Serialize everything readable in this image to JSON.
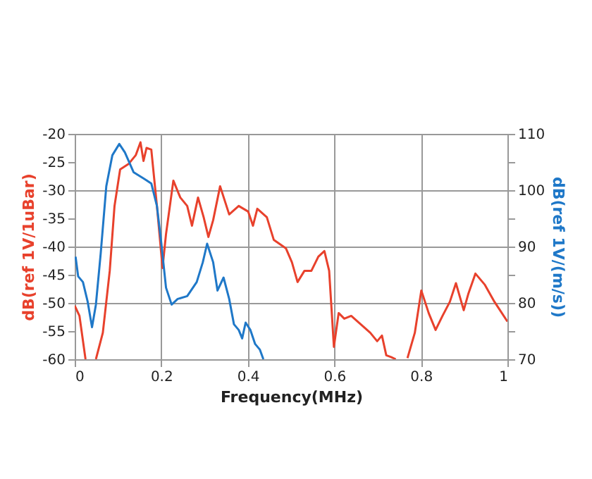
{
  "chart_data": {
    "type": "line",
    "xlabel": "Frequency(MHz)",
    "ylabel": "dB(ref  1V/1uBar)",
    "y2label": "dB(ref 1V/(m/s))",
    "xlim": [
      0,
      1
    ],
    "xticks": [
      0,
      0.2,
      0.4,
      0.6,
      0.8,
      1
    ],
    "ylim": [
      -60,
      -20
    ],
    "yticks": [
      -60,
      -55,
      -50,
      -45,
      -40,
      -35,
      -30,
      -25,
      -20
    ],
    "y2lim": [
      70,
      110
    ],
    "y2ticks": [
      70,
      {
        "value": 75,
        "label": null
      },
      80,
      {
        "value": 85,
        "label": null
      },
      90,
      {
        "value": 95,
        "label": null
      },
      100,
      {
        "value": 105,
        "label": null
      },
      110
    ],
    "grid": true,
    "marker": "none",
    "line_style": "solid",
    "series": [
      {
        "color": "#e8412c",
        "x": [
          0,
          0.011,
          0.025,
          0.037,
          0.049,
          0.065,
          0.081,
          0.092,
          0.105,
          0.125,
          0.141,
          0.152,
          0.159,
          0.166,
          0.177,
          0.19,
          0.203,
          0.211,
          0.228,
          0.244,
          0.26,
          0.271,
          0.285,
          0.298,
          0.309,
          0.32,
          0.336,
          0.357,
          0.379,
          0.401,
          0.412,
          0.422,
          0.444,
          0.46,
          0.488,
          0.502,
          0.515,
          0.531,
          0.547,
          0.563,
          0.577,
          0.588,
          0.599,
          0.61,
          0.623,
          0.639,
          0.661,
          0.683,
          0.699,
          0.71,
          0.72,
          0.731,
          0.742,
          0.755,
          0.769,
          0.786,
          0.801,
          0.818,
          0.834,
          0.85,
          0.867,
          0.881,
          0.899,
          0.91,
          0.926,
          0.948,
          0.97,
          1.0
        ],
        "values": [
          -50.5,
          -52.3,
          -60,
          null,
          -60,
          -55.3,
          -44.3,
          -32.8,
          -26.3,
          -25.3,
          -23.8,
          -21.5,
          -24.8,
          -22.5,
          -22.8,
          -32.8,
          -43.8,
          -37.8,
          -28.3,
          -31.3,
          -32.8,
          -36.3,
          -31.3,
          -34.8,
          -38.3,
          -35.3,
          -29.3,
          -34.3,
          -32.8,
          -33.8,
          -36.3,
          -33.3,
          -34.8,
          -38.8,
          -40.3,
          -42.8,
          -46.3,
          -44.3,
          -44.3,
          -41.8,
          -40.8,
          -44.3,
          -57.8,
          -51.8,
          -52.8,
          -52.3,
          -53.8,
          -55.3,
          -56.8,
          -55.8,
          -59.3,
          -59.6,
          -60,
          null,
          -59.8,
          -55.3,
          -47.8,
          -51.8,
          -54.8,
          -52.3,
          -49.8,
          -46.5,
          -51.3,
          -48.3,
          -44.8,
          -46.8,
          -49.8,
          -53.3
        ]
      },
      {
        "color": "#1f78c8",
        "axis": "y2",
        "x": [
          0.002,
          0.008,
          0.019,
          0.03,
          0.04,
          0.049,
          0.06,
          0.073,
          0.087,
          0.103,
          0.116,
          0.136,
          0.157,
          0.177,
          0.19,
          0.2,
          0.211,
          0.224,
          0.238,
          0.26,
          0.282,
          0.296,
          0.306,
          0.32,
          0.33,
          0.344,
          0.357,
          0.368,
          0.379,
          0.387,
          0.395,
          0.406,
          0.417,
          0.428,
          0.436
        ],
        "values": [
          88.2,
          84.7,
          83.7,
          80.2,
          75.7,
          79.7,
          88.7,
          100.7,
          106.2,
          108.2,
          106.7,
          103.2,
          102.2,
          101.2,
          97.2,
          90.7,
          82.7,
          79.7,
          80.7,
          81.2,
          83.7,
          87.2,
          90.5,
          87.2,
          82.2,
          84.5,
          80.7,
          76.2,
          75.2,
          73.7,
          76.5,
          75.2,
          72.7,
          71.7,
          70
        ]
      }
    ]
  }
}
